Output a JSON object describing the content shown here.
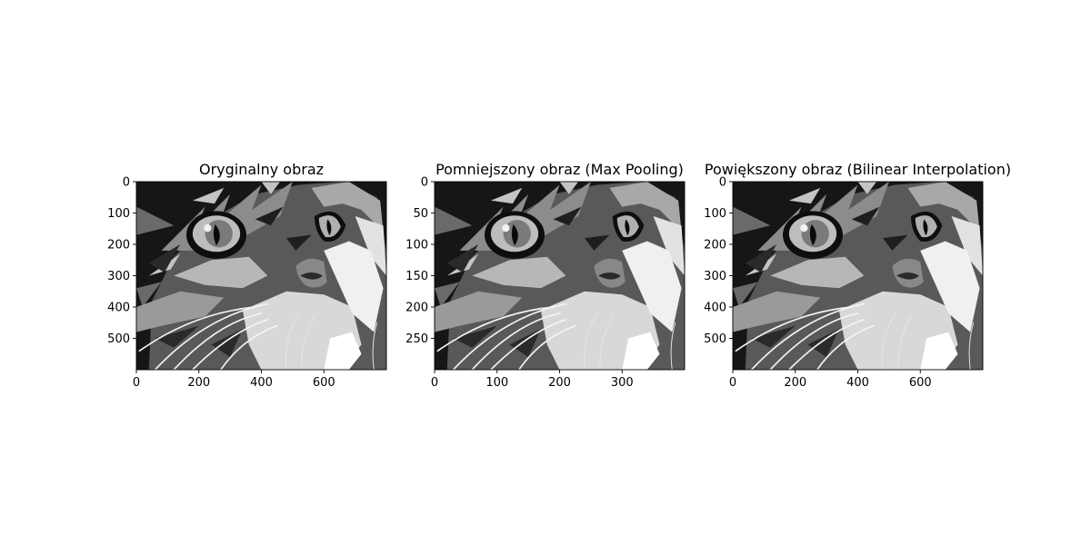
{
  "chart_data": [
    {
      "type": "image",
      "title": "Oryginalny obraz",
      "image_content": "grayscale illustration of a cat face",
      "image_size": {
        "width": 800,
        "height": 600
      },
      "xlim": [
        0,
        800
      ],
      "ylim": [
        600,
        0
      ],
      "xticks": [
        0,
        200,
        400,
        600
      ],
      "yticks": [
        0,
        100,
        200,
        300,
        400,
        500
      ],
      "grid": false
    },
    {
      "type": "image",
      "title": "Pomniejszony obraz (Max Pooling)",
      "image_content": "grayscale illustration of a cat face",
      "image_size": {
        "width": 400,
        "height": 300
      },
      "xlim": [
        0,
        400
      ],
      "ylim": [
        300,
        0
      ],
      "xticks": [
        0,
        100,
        200,
        300
      ],
      "yticks": [
        0,
        50,
        100,
        150,
        200,
        250
      ],
      "grid": false
    },
    {
      "type": "image",
      "title": "Powiększony obraz (Bilinear Interpolation)",
      "image_content": "grayscale illustration of a cat face",
      "image_size": {
        "width": 800,
        "height": 600
      },
      "xlim": [
        0,
        800
      ],
      "ylim": [
        600,
        0
      ],
      "xticks": [
        0,
        200,
        400,
        600
      ],
      "yticks": [
        0,
        100,
        200,
        300,
        400,
        500
      ],
      "grid": false
    }
  ],
  "colors": {
    "background": "#ffffff",
    "axis": "#000000",
    "dark": "#161616",
    "mid": "#5f5f5f",
    "light": "#a9a9a9",
    "white": "#f0f0f0"
  }
}
